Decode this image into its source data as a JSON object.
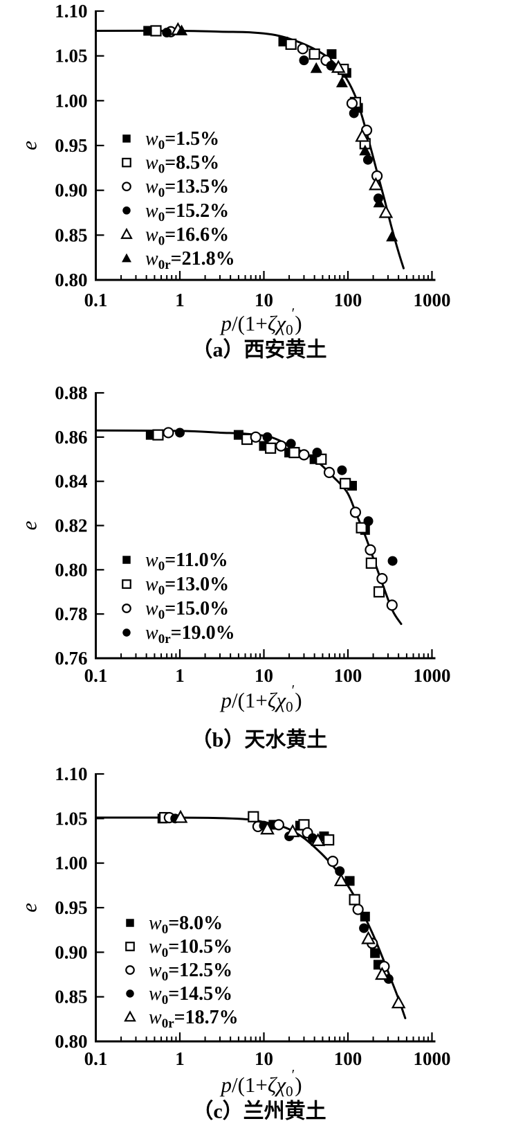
{
  "figure": {
    "background_color": "#ffffff",
    "ink_color": "#000000"
  },
  "chart_data": [
    {
      "id": "a",
      "type": "scatter",
      "caption": "（a）西安黄土",
      "ylabel": "e",
      "xlabel_text": "p/(1+ζχ0′)",
      "xlabel_parts": [
        {
          "t": "p",
          "i": true
        },
        {
          "t": "/(1+",
          "i": false
        },
        {
          "t": "ζχ",
          "i": true
        },
        {
          "t": "0",
          "pos": "sub"
        },
        {
          "t": "′",
          "pos": "sup"
        },
        {
          "t": ")",
          "i": false
        }
      ],
      "x_scale": "log",
      "x_range": [
        0.1,
        1000
      ],
      "x_tick_labels": [
        "0.1",
        "1",
        "10",
        "100",
        "1000"
      ],
      "y_range": [
        0.8,
        1.1
      ],
      "y_ticks": [
        1.1,
        1.05,
        1.0,
        0.95,
        0.9,
        0.85,
        0.8
      ],
      "y_tick_labels": [
        "1.10",
        "1.05",
        "1.00",
        "0.95",
        "0.90",
        "0.85",
        "0.80"
      ],
      "grid": false,
      "legend_position": "inside-left",
      "curve": [
        [
          0.1,
          1.078
        ],
        [
          1,
          1.078
        ],
        [
          3,
          1.077
        ],
        [
          6,
          1.0765
        ],
        [
          10,
          1.075
        ],
        [
          15,
          1.0725
        ],
        [
          22,
          1.068
        ],
        [
          32,
          1.062
        ],
        [
          45,
          1.055
        ],
        [
          60,
          1.047
        ],
        [
          80,
          1.035
        ],
        [
          100,
          1.022
        ],
        [
          125,
          1.003
        ],
        [
          150,
          0.98
        ],
        [
          180,
          0.953
        ],
        [
          220,
          0.922
        ],
        [
          270,
          0.891
        ],
        [
          330,
          0.859
        ],
        [
          400,
          0.831
        ],
        [
          460,
          0.813
        ]
      ],
      "series": [
        {
          "name": "w0=1.5%",
          "label": {
            "pre": "w",
            "sub": "0",
            "rest": "=1.5%"
          },
          "marker": "square-filled",
          "points": [
            [
              0.42,
              1.078
            ],
            [
              17,
              1.066
            ],
            [
              64,
              1.052
            ],
            [
              96,
              1.031
            ],
            [
              132,
              0.992
            ]
          ]
        },
        {
          "name": "w0=8.5%",
          "label": {
            "pre": "w",
            "sub": "0",
            "rest": "=8.5%"
          },
          "marker": "square-open",
          "points": [
            [
              0.52,
              1.078
            ],
            [
              21,
              1.063
            ],
            [
              40,
              1.052
            ],
            [
              88,
              1.035
            ],
            [
              123,
              0.998
            ],
            [
              160,
              0.952
            ]
          ]
        },
        {
          "name": "w0=13.5%",
          "label": {
            "pre": "w",
            "sub": "0",
            "rest": "=13.5%"
          },
          "marker": "circle-open",
          "points": [
            [
              0.78,
              1.077
            ],
            [
              29,
              1.058
            ],
            [
              55,
              1.045
            ],
            [
              112,
              0.997
            ],
            [
              167,
              0.967
            ],
            [
              222,
              0.916
            ]
          ]
        },
        {
          "name": "w0=15.2%",
          "label": {
            "pre": "w",
            "sub": "0",
            "rest": "=15.2%"
          },
          "marker": "circle-filled",
          "points": [
            [
              0.7,
              1.076
            ],
            [
              30,
              1.045
            ],
            [
              63,
              1.039
            ],
            [
              118,
              0.986
            ],
            [
              173,
              0.934
            ],
            [
              230,
              0.891
            ]
          ]
        },
        {
          "name": "w0=16.6%",
          "label": {
            "pre": "w",
            "sub": "0",
            "rest": "=16.6%"
          },
          "marker": "triangle-open",
          "points": [
            [
              0.95,
              1.079
            ],
            [
              77,
              1.037
            ],
            [
              148,
              0.96
            ],
            [
              215,
              0.906
            ],
            [
              283,
              0.875
            ]
          ]
        },
        {
          "name": "w0r=21.8%",
          "label": {
            "pre": "w",
            "sub": "0r",
            "rest": "=21.8%"
          },
          "marker": "triangle-filled",
          "points": [
            [
              1.05,
              1.078
            ],
            [
              42,
              1.036
            ],
            [
              85,
              1.02
            ],
            [
              160,
              0.944
            ],
            [
              235,
              0.886
            ],
            [
              334,
              0.848
            ]
          ]
        }
      ]
    },
    {
      "id": "b",
      "type": "scatter",
      "caption": "（b）天水黄土",
      "ylabel": "e",
      "xlabel_text": "p/(1+ζχ0′)",
      "xlabel_parts": [
        {
          "t": "p",
          "i": true
        },
        {
          "t": "/(1+",
          "i": false
        },
        {
          "t": "ζχ",
          "i": true
        },
        {
          "t": "0",
          "pos": "sub"
        },
        {
          "t": "′",
          "pos": "sup"
        },
        {
          "t": ")",
          "i": false
        }
      ],
      "x_scale": "log",
      "x_range": [
        0.1,
        1000
      ],
      "x_tick_labels": [
        "0.1",
        "1",
        "10",
        "100",
        "1000"
      ],
      "y_range": [
        0.76,
        0.88
      ],
      "y_ticks": [
        0.88,
        0.86,
        0.84,
        0.82,
        0.8,
        0.78,
        0.76
      ],
      "y_tick_labels": [
        "0.88",
        "0.86",
        "0.84",
        "0.82",
        "0.80",
        "0.78",
        "0.76"
      ],
      "grid": false,
      "legend_position": "inside-left",
      "curve": [
        [
          0.1,
          0.863
        ],
        [
          1,
          0.8628
        ],
        [
          3,
          0.862
        ],
        [
          6,
          0.8615
        ],
        [
          12,
          0.86
        ],
        [
          22,
          0.8555
        ],
        [
          40,
          0.85
        ],
        [
          67,
          0.842
        ],
        [
          98,
          0.835
        ],
        [
          125,
          0.8255
        ],
        [
          162,
          0.815
        ],
        [
          206,
          0.804
        ],
        [
          261,
          0.793
        ],
        [
          340,
          0.7815
        ],
        [
          430,
          0.7755
        ]
      ],
      "series": [
        {
          "name": "w0=11.0%",
          "label": {
            "pre": "w",
            "sub": "0",
            "rest": "=11.0%"
          },
          "marker": "square-filled",
          "points": [
            [
              0.45,
              0.861
            ],
            [
              5,
              0.861
            ],
            [
              10,
              0.856
            ],
            [
              20,
              0.853
            ],
            [
              40,
              0.85
            ],
            [
              112,
              0.838
            ],
            [
              160,
              0.818
            ]
          ]
        },
        {
          "name": "w0=13.0%",
          "label": {
            "pre": "w",
            "sub": "0",
            "rest": "=13.0%"
          },
          "marker": "square-open",
          "points": [
            [
              0.55,
              0.861
            ],
            [
              6.3,
              0.859
            ],
            [
              12,
              0.855
            ],
            [
              23,
              0.853
            ],
            [
              48,
              0.85
            ],
            [
              93,
              0.839
            ],
            [
              145,
              0.819
            ],
            [
              190,
              0.803
            ],
            [
              235,
              0.79
            ]
          ]
        },
        {
          "name": "w0=15.0%",
          "label": {
            "pre": "w",
            "sub": "0",
            "rest": "=15.0%"
          },
          "marker": "circle-open",
          "points": [
            [
              0.73,
              0.862
            ],
            [
              8,
              0.86
            ],
            [
              16,
              0.856
            ],
            [
              30,
              0.852
            ],
            [
              60,
              0.844
            ],
            [
              123,
              0.826
            ],
            [
              185,
              0.809
            ],
            [
              255,
              0.796
            ],
            [
              335,
              0.784
            ]
          ]
        },
        {
          "name": "w0r=19.0%",
          "label": {
            "pre": "w",
            "sub": "0r",
            "rest": "=19.0%"
          },
          "marker": "circle-filled",
          "points": [
            [
              1.0,
              0.862
            ],
            [
              11,
              0.86
            ],
            [
              21,
              0.857
            ],
            [
              43,
              0.853
            ],
            [
              85,
              0.845
            ],
            [
              175,
              0.822
            ],
            [
              340,
              0.804
            ]
          ]
        }
      ]
    },
    {
      "id": "c",
      "type": "scatter",
      "caption": "（c）兰州黄土",
      "ylabel": "e",
      "xlabel_text": "p/(1+ζχ0′)",
      "xlabel_parts": [
        {
          "t": "p",
          "i": true
        },
        {
          "t": "/(1+",
          "i": false
        },
        {
          "t": "ζχ",
          "i": true
        },
        {
          "t": "0",
          "pos": "sub"
        },
        {
          "t": "′",
          "pos": "sup"
        },
        {
          "t": ")",
          "i": false
        }
      ],
      "x_scale": "log",
      "x_range": [
        0.1,
        1000
      ],
      "x_tick_labels": [
        "0.1",
        "1",
        "10",
        "100",
        "1000"
      ],
      "y_range": [
        0.8,
        1.1
      ],
      "y_ticks": [
        1.1,
        1.05,
        1.0,
        0.95,
        0.9,
        0.85,
        0.8
      ],
      "y_tick_labels": [
        "1.10",
        "1.05",
        "1.00",
        "0.95",
        "0.90",
        "0.85",
        "0.80"
      ],
      "grid": false,
      "legend_position": "inside-left",
      "curve": [
        [
          0.1,
          1.051
        ],
        [
          1,
          1.051
        ],
        [
          3,
          1.0505
        ],
        [
          6.5,
          1.049
        ],
        [
          10,
          1.046
        ],
        [
          16,
          1.0415
        ],
        [
          22,
          1.036
        ],
        [
          31,
          1.027
        ],
        [
          48,
          1.011
        ],
        [
          66,
          0.997
        ],
        [
          90,
          0.981
        ],
        [
          124,
          0.96
        ],
        [
          158,
          0.94
        ],
        [
          205,
          0.917
        ],
        [
          261,
          0.893
        ],
        [
          334,
          0.867
        ],
        [
          403,
          0.847
        ],
        [
          481,
          0.826
        ]
      ],
      "series": [
        {
          "name": "w0=8.0%",
          "label": {
            "pre": "w",
            "sub": "0",
            "rest": "=8.0%"
          },
          "marker": "square-filled",
          "points": [
            [
              0.62,
              1.05
            ],
            [
              13,
              1.043
            ],
            [
              27,
              1.042
            ],
            [
              52,
              1.03
            ],
            [
              105,
              0.98
            ],
            [
              160,
              0.94
            ],
            [
              210,
              0.899
            ],
            [
              230,
              0.886
            ]
          ]
        },
        {
          "name": "w0=10.5%",
          "label": {
            "pre": "w",
            "sub": "0",
            "rest": "=10.5%"
          },
          "marker": "square-open",
          "points": [
            [
              0.66,
              1.051
            ],
            [
              7.5,
              1.052
            ],
            [
              30,
              1.043
            ],
            [
              59,
              1.026
            ],
            [
              120,
              0.959
            ]
          ]
        },
        {
          "name": "w0=12.5%",
          "label": {
            "pre": "w",
            "sub": "0",
            "rest": "=12.5%"
          },
          "marker": "circle-open",
          "points": [
            [
              0.75,
              1.051
            ],
            [
              8.5,
              1.041
            ],
            [
              15,
              1.043
            ],
            [
              33,
              1.034
            ],
            [
              66,
              1.002
            ],
            [
              132,
              0.948
            ],
            [
              195,
              0.91
            ],
            [
              270,
              0.884
            ]
          ]
        },
        {
          "name": "w0=14.5%",
          "label": {
            "pre": "w",
            "sub": "0",
            "rest": "=14.5%"
          },
          "marker": "circle-filled",
          "points": [
            [
              0.88,
              1.05
            ],
            [
              10,
              1.042
            ],
            [
              20,
              1.03
            ],
            [
              38,
              1.028
            ],
            [
              80,
              0.991
            ],
            [
              155,
              0.927
            ],
            [
              305,
              0.87
            ]
          ]
        },
        {
          "name": "w0r=18.7%",
          "label": {
            "pre": "w",
            "sub": "0r",
            "rest": "=18.7%"
          },
          "marker": "triangle-open",
          "points": [
            [
              1.02,
              1.051
            ],
            [
              11,
              1.038
            ],
            [
              22,
              1.035
            ],
            [
              44,
              1.025
            ],
            [
              83,
              0.98
            ],
            [
              175,
              0.915
            ],
            [
              255,
              0.875
            ],
            [
              400,
              0.843
            ]
          ]
        }
      ]
    }
  ]
}
